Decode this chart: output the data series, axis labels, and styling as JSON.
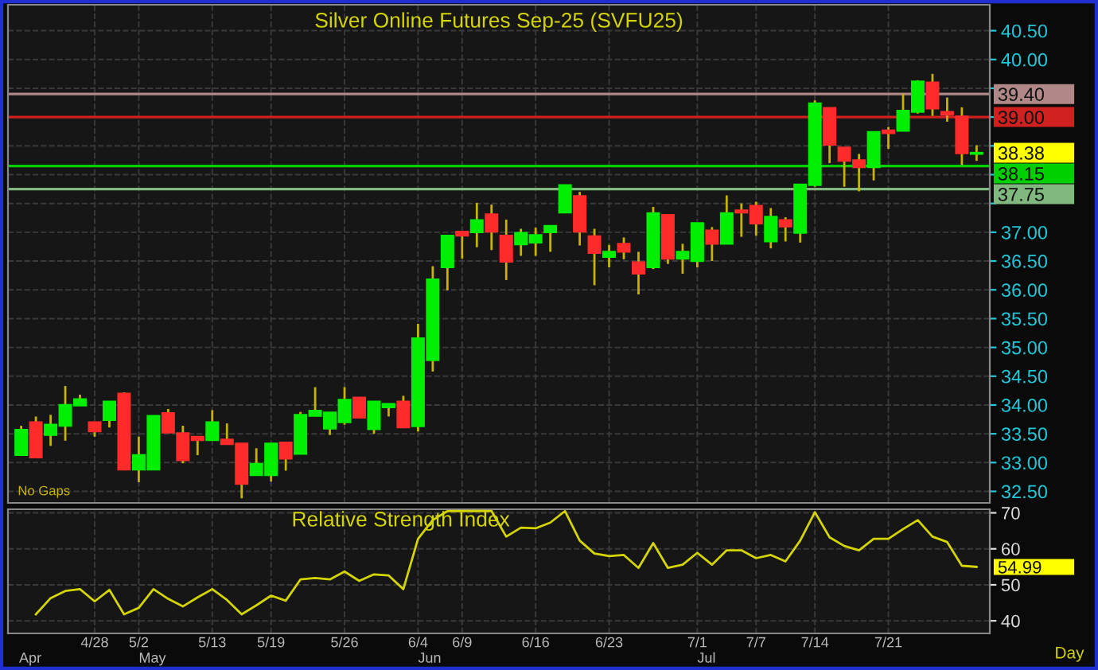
{
  "chart_data": [
    {
      "type": "candlestick",
      "title": "Silver Online Futures Sep-25 (SVFU25)",
      "categories": [
        null,
        null,
        null,
        null,
        null,
        null,
        null,
        null,
        null,
        null,
        null,
        null,
        null,
        null,
        null,
        null,
        null,
        null,
        null,
        null,
        null,
        null,
        null,
        null,
        null,
        null,
        null,
        null,
        null,
        null,
        null,
        null,
        null,
        null,
        null,
        null,
        null,
        null,
        null,
        null,
        null,
        null,
        null,
        null,
        null,
        null,
        null,
        null,
        null,
        null,
        null,
        null,
        null,
        null,
        null,
        null,
        null,
        null,
        null,
        null,
        null,
        null,
        null,
        null,
        null,
        null
      ],
      "ohlc": [
        [
          33.13,
          33.64,
          33.12,
          33.57
        ],
        [
          33.7,
          33.8,
          33.09,
          33.09
        ],
        [
          33.48,
          33.83,
          33.29,
          33.66
        ],
        [
          33.64,
          34.33,
          33.38,
          34.0
        ],
        [
          33.99,
          34.18,
          33.99,
          34.1
        ],
        [
          33.7,
          33.7,
          33.45,
          33.54
        ],
        [
          33.74,
          34.06,
          33.61,
          34.06
        ],
        [
          34.2,
          34.22,
          32.88,
          32.88
        ],
        [
          32.88,
          33.45,
          32.66,
          33.13
        ],
        [
          32.88,
          33.81,
          32.88,
          33.81
        ],
        [
          33.86,
          33.93,
          33.52,
          33.52
        ],
        [
          33.51,
          33.64,
          32.99,
          33.04
        ],
        [
          33.45,
          33.45,
          33.13,
          33.39
        ],
        [
          33.39,
          33.91,
          33.39,
          33.7
        ],
        [
          33.4,
          33.68,
          33.32,
          33.32
        ],
        [
          33.33,
          33.33,
          32.38,
          32.63
        ],
        [
          32.78,
          33.25,
          32.78,
          32.98
        ],
        [
          32.78,
          33.33,
          32.67,
          33.33
        ],
        [
          33.35,
          33.35,
          32.86,
          33.07
        ],
        [
          33.15,
          33.88,
          33.15,
          33.83
        ],
        [
          33.81,
          34.31,
          33.81,
          33.9
        ],
        [
          33.59,
          33.87,
          33.48,
          33.87
        ],
        [
          33.7,
          34.31,
          33.66,
          34.09
        ],
        [
          34.13,
          34.13,
          33.78,
          33.78
        ],
        [
          33.58,
          34.06,
          33.5,
          34.06
        ],
        [
          33.96,
          34.02,
          33.8,
          34.02
        ],
        [
          34.06,
          34.16,
          33.61,
          33.61
        ],
        [
          33.63,
          35.41,
          33.54,
          35.16
        ],
        [
          34.78,
          36.41,
          34.58,
          36.18
        ],
        [
          36.39,
          36.94,
          35.99,
          36.94
        ],
        [
          37.01,
          37.01,
          36.54,
          36.94
        ],
        [
          37.0,
          37.51,
          36.74,
          37.21
        ],
        [
          37.31,
          37.48,
          36.69,
          37.01
        ],
        [
          36.94,
          37.22,
          36.17,
          36.49
        ],
        [
          36.79,
          37.06,
          36.59,
          36.99
        ],
        [
          36.82,
          37.08,
          36.59,
          36.95
        ],
        [
          37.0,
          37.11,
          36.66,
          37.11
        ],
        [
          37.34,
          37.82,
          37.34,
          37.82
        ],
        [
          37.63,
          37.7,
          36.77,
          37.01
        ],
        [
          36.93,
          37.06,
          36.08,
          36.64
        ],
        [
          36.57,
          36.78,
          36.39,
          36.66
        ],
        [
          36.8,
          36.91,
          36.53,
          36.66
        ],
        [
          36.48,
          36.66,
          35.92,
          36.28
        ],
        [
          36.39,
          37.44,
          36.36,
          37.33
        ],
        [
          37.3,
          37.3,
          36.45,
          36.54
        ],
        [
          36.54,
          36.8,
          36.28,
          36.66
        ],
        [
          36.5,
          37.16,
          36.39,
          37.16
        ],
        [
          37.03,
          37.09,
          36.5,
          36.8
        ],
        [
          36.8,
          37.64,
          36.8,
          37.33
        ],
        [
          37.38,
          37.5,
          36.92,
          37.34
        ],
        [
          37.46,
          37.53,
          36.94,
          37.15
        ],
        [
          36.84,
          37.42,
          36.72,
          37.27
        ],
        [
          37.21,
          37.26,
          36.84,
          37.1
        ],
        [
          36.99,
          37.83,
          36.82,
          37.83
        ],
        [
          37.82,
          39.29,
          37.79,
          39.24
        ],
        [
          39.16,
          39.16,
          38.2,
          38.52
        ],
        [
          38.47,
          38.47,
          37.79,
          38.24
        ],
        [
          38.25,
          38.36,
          37.71,
          38.13
        ],
        [
          38.13,
          38.74,
          37.9,
          38.74
        ],
        [
          38.77,
          38.83,
          38.45,
          38.72
        ],
        [
          38.76,
          39.41,
          38.76,
          39.11
        ],
        [
          39.09,
          39.64,
          39.06,
          39.62
        ],
        [
          39.6,
          39.75,
          39.02,
          39.15
        ],
        [
          39.09,
          39.34,
          38.92,
          39.04
        ],
        [
          39.01,
          39.17,
          38.17,
          38.37
        ],
        [
          38.36,
          38.51,
          38.24,
          38.38
        ]
      ],
      "colors": [
        "#00ee00",
        "#ff2a2a",
        "#00ee00",
        "#00ee00",
        "#00ee00",
        "#ff2a2a",
        "#00ee00",
        "#ff2a2a",
        "#00ee00",
        "#00ee00",
        "#ff2a2a",
        "#ff2a2a",
        "#ff2a2a",
        "#00ee00",
        "#ff2a2a",
        "#ff2a2a",
        "#00ee00",
        "#00ee00",
        "#ff2a2a",
        "#00ee00",
        "#00ee00",
        "#00ee00",
        "#00ee00",
        "#ff2a2a",
        "#00ee00",
        "#00ee00",
        "#ff2a2a",
        "#00ee00",
        "#00ee00",
        "#00ee00",
        "#ff2a2a",
        "#00ee00",
        "#ff2a2a",
        "#ff2a2a",
        "#00ee00",
        "#00ee00",
        "#00ee00",
        "#00ee00",
        "#ff2a2a",
        "#ff2a2a",
        "#00ee00",
        "#ff2a2a",
        "#ff2a2a",
        "#00ee00",
        "#ff2a2a",
        "#00ee00",
        "#00ee00",
        "#ff2a2a",
        "#00ee00",
        "#ff2a2a",
        "#ff2a2a",
        "#00ee00",
        "#ff2a2a",
        "#00ee00",
        "#00ee00",
        "#ff2a2a",
        "#ff2a2a",
        "#ff2a2a",
        "#00ee00",
        "#ff2a2a",
        "#00ee00",
        "#00ee00",
        "#ff2a2a",
        "#ff2a2a",
        "#ff2a2a",
        "#00ee00"
      ],
      "ylim": [
        32.3,
        40.95
      ],
      "yticks": [
        {
          "value": 32.5,
          "label": "32.50"
        },
        {
          "value": 33.0,
          "label": "33.00"
        },
        {
          "value": 33.5,
          "label": "33.50"
        },
        {
          "value": 34.0,
          "label": "34.00"
        },
        {
          "value": 34.5,
          "label": "34.50"
        },
        {
          "value": 35.0,
          "label": "35.00"
        },
        {
          "value": 35.5,
          "label": "35.50"
        },
        {
          "value": 36.0,
          "label": "36.00"
        },
        {
          "value": 36.5,
          "label": "36.50"
        },
        {
          "value": 37.0,
          "label": "37.00"
        },
        {
          "value": 37.5,
          "label": null
        },
        {
          "value": 38.0,
          "label": null
        },
        {
          "value": 38.5,
          "label": null
        },
        {
          "value": 39.0,
          "label": null
        },
        {
          "value": 39.5,
          "label": null
        },
        {
          "value": 40.0,
          "label": "40.00"
        },
        {
          "value": 40.5,
          "label": "40.50"
        }
      ],
      "ref_lines": [
        {
          "axis": "y",
          "value": 39.4,
          "label": "39.40",
          "color": "#b08888"
        },
        {
          "axis": "y",
          "value": 39.0,
          "label": "39.00",
          "color": "#d02020"
        },
        {
          "axis": "y",
          "value": 38.15,
          "label": "38.15",
          "color": "#00d000"
        },
        {
          "axis": "y",
          "value": 37.75,
          "label": "37.75",
          "color": "#80b880"
        }
      ],
      "annotations": [
        "No Gaps",
        "38.38"
      ],
      "grid": true,
      "tick_labels": "y"
    },
    {
      "type": "line",
      "title": "Relative Strength Index",
      "categories": [
        null,
        null,
        null,
        null,
        null,
        "4/28",
        null,
        null,
        "5/2",
        null,
        null,
        null,
        null,
        "5/13",
        null,
        null,
        null,
        "5/19",
        null,
        null,
        null,
        null,
        "5/26",
        null,
        null,
        null,
        null,
        "6/4",
        null,
        null,
        "6/9",
        null,
        null,
        null,
        null,
        "6/16",
        null,
        null,
        null,
        null,
        "6/23",
        null,
        null,
        null,
        null,
        null,
        "7/1",
        null,
        null,
        null,
        "7/7",
        null,
        null,
        null,
        "7/14",
        null,
        null,
        null,
        null,
        "7/21",
        null,
        null,
        null,
        null,
        null,
        null
      ],
      "series": [
        {
          "color": "#d4d400",
          "values": [
            null,
            41.8,
            46.3,
            48.3,
            48.8,
            45.4,
            48.6,
            41.8,
            43.6,
            48.8,
            46.1,
            44.0,
            46.5,
            48.8,
            45.8,
            41.8,
            44.3,
            47.0,
            45.6,
            51.5,
            51.9,
            51.5,
            53.7,
            51.1,
            52.9,
            52.6,
            48.8,
            62.8,
            68.0,
            70.5,
            70.5,
            70.5,
            70.5,
            63.4,
            65.9,
            65.7,
            67.3,
            70.5,
            62.3,
            58.7,
            58.0,
            58.3,
            54.7,
            61.6,
            54.7,
            55.6,
            58.9,
            55.6,
            59.6,
            59.6,
            57.4,
            58.3,
            56.5,
            62.3,
            70.2,
            63.2,
            60.8,
            59.6,
            62.8,
            62.8,
            65.5,
            68.0,
            63.4,
            61.9,
            55.3,
            54.99
          ]
        }
      ],
      "ylim": [
        36.5,
        71
      ],
      "yticks": [
        40,
        50,
        60,
        70
      ],
      "annotations": [
        "54.99",
        "Day",
        "Apr",
        "May",
        "Jun",
        "Jul"
      ],
      "grid": true,
      "marker": "none",
      "line_style": "solid"
    }
  ]
}
